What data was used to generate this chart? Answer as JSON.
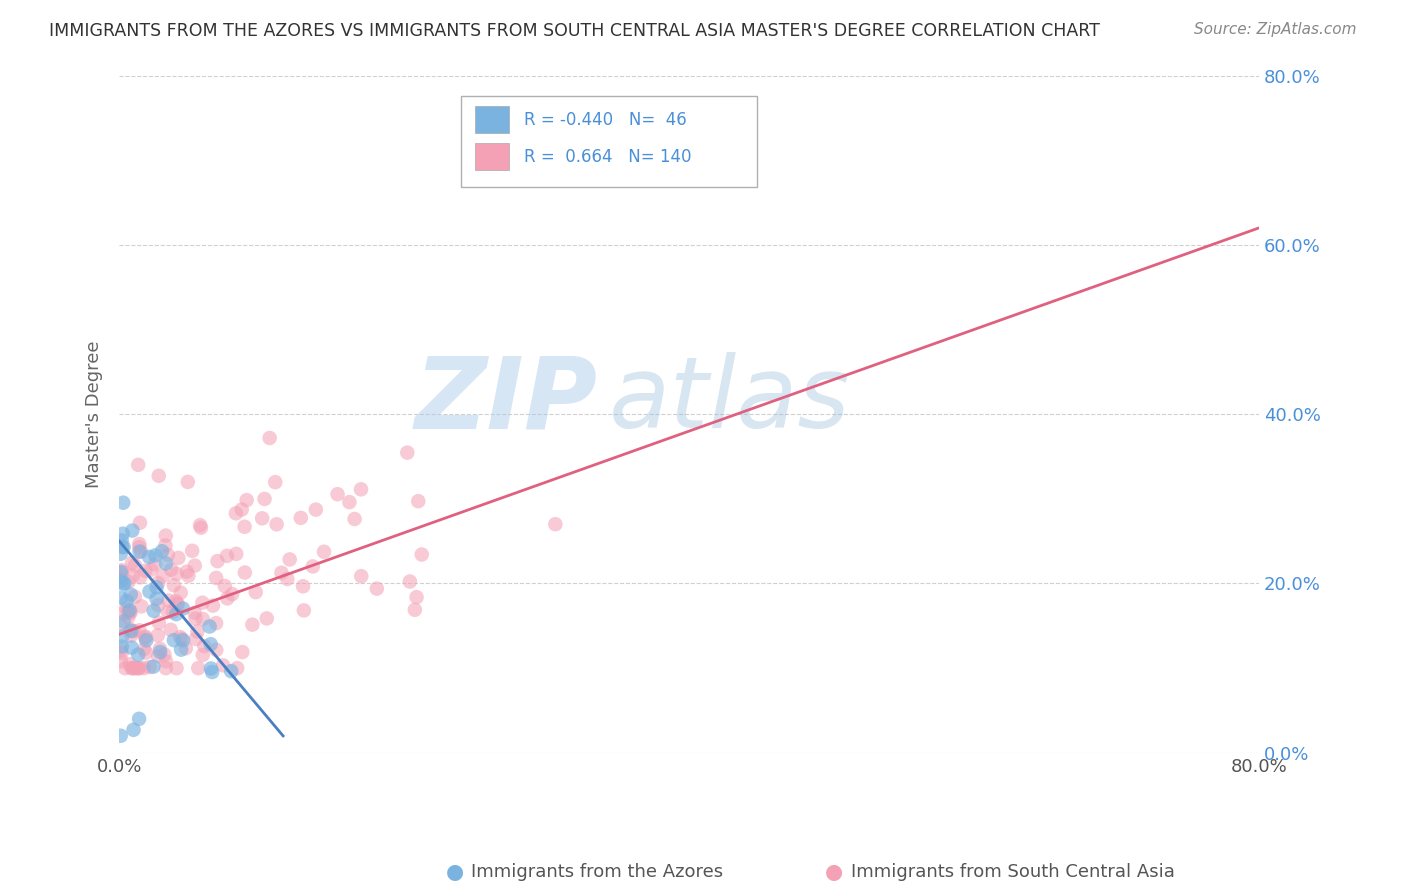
{
  "title": "IMMIGRANTS FROM THE AZORES VS IMMIGRANTS FROM SOUTH CENTRAL ASIA MASTER'S DEGREE CORRELATION CHART",
  "source": "Source: ZipAtlas.com",
  "ylabel": "Master's Degree",
  "legend_azores_label": "Immigrants from the Azores",
  "legend_sca_label": "Immigrants from South Central Asia",
  "azores_R": -0.44,
  "azores_N": 46,
  "sca_R": 0.664,
  "sca_N": 140,
  "xlim": [
    0.0,
    0.8
  ],
  "ylim": [
    0.0,
    0.8
  ],
  "ytick_values": [
    0.0,
    0.2,
    0.4,
    0.6,
    0.8
  ],
  "ytick_labels": [
    "0.0%",
    "20.0%",
    "40.0%",
    "60.0%",
    "80.0%"
  ],
  "xtick_values": [
    0.0,
    0.8
  ],
  "xtick_labels": [
    "0.0%",
    "80.0%"
  ],
  "azores_color": "#7ab3e0",
  "sca_color": "#f4a0b5",
  "azores_line_color": "#4a7fc1",
  "sca_line_color": "#e06080",
  "watermark_zip": "ZIP",
  "watermark_atlas": "atlas",
  "background_color": "#ffffff",
  "grid_color": "#d0d0d0",
  "title_color": "#333333",
  "right_tick_color": "#4a90d9",
  "legend_text_color": "#4a90d9",
  "legend_R_color": "#4a90d9"
}
